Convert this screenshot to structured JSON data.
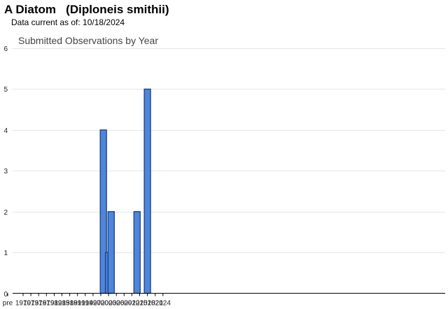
{
  "header": {
    "title": "A Diatom   (Diploneis smithii)",
    "subtitle": "Data current as of: 10/18/2024"
  },
  "chart_data": {
    "type": "bar",
    "title": "Submitted Observations by Year",
    "xlabel": "",
    "ylabel": "",
    "ylim": [
      0,
      6
    ],
    "yticks": [
      0,
      1,
      2,
      3,
      4,
      5,
      6
    ],
    "grid": true,
    "bar_color": "#4f86d8",
    "bar_edge_color": "#1a3f8f",
    "x_tick_labels": [
      "pre",
      "1970",
      "1973",
      "1976",
      "1979",
      "1982",
      "1985",
      "1988",
      "1991",
      "1994",
      "1997",
      "2000",
      "2003",
      "2006",
      "2009",
      "2012",
      "2015",
      "2018",
      "2021",
      "2024"
    ],
    "x_categories": [
      "pre",
      "1970",
      "1971",
      "1972",
      "1973",
      "1974",
      "1975",
      "1976",
      "1977",
      "1978",
      "1979",
      "1980",
      "1981",
      "1982",
      "1983",
      "1984",
      "1985",
      "1986",
      "1987",
      "1988",
      "1989",
      "1990",
      "1991",
      "1992",
      "1993",
      "1994",
      "1995",
      "1996",
      "1997",
      "1998",
      "1999",
      "2000",
      "2001",
      "2002",
      "2003",
      "2004",
      "2005",
      "2006",
      "2007",
      "2008",
      "2009",
      "2010",
      "2011",
      "2012",
      "2013",
      "2014",
      "2015",
      "2016",
      "2017",
      "2018",
      "2019",
      "2020",
      "2021",
      "2022",
      "2023",
      "2024"
    ],
    "bars": [
      {
        "x": "2001",
        "value": 4
      },
      {
        "x": "2003",
        "value": 1
      },
      {
        "x": "2004",
        "value": 2
      },
      {
        "x": "2014",
        "value": 2
      },
      {
        "x": "2018",
        "value": 5
      }
    ]
  }
}
